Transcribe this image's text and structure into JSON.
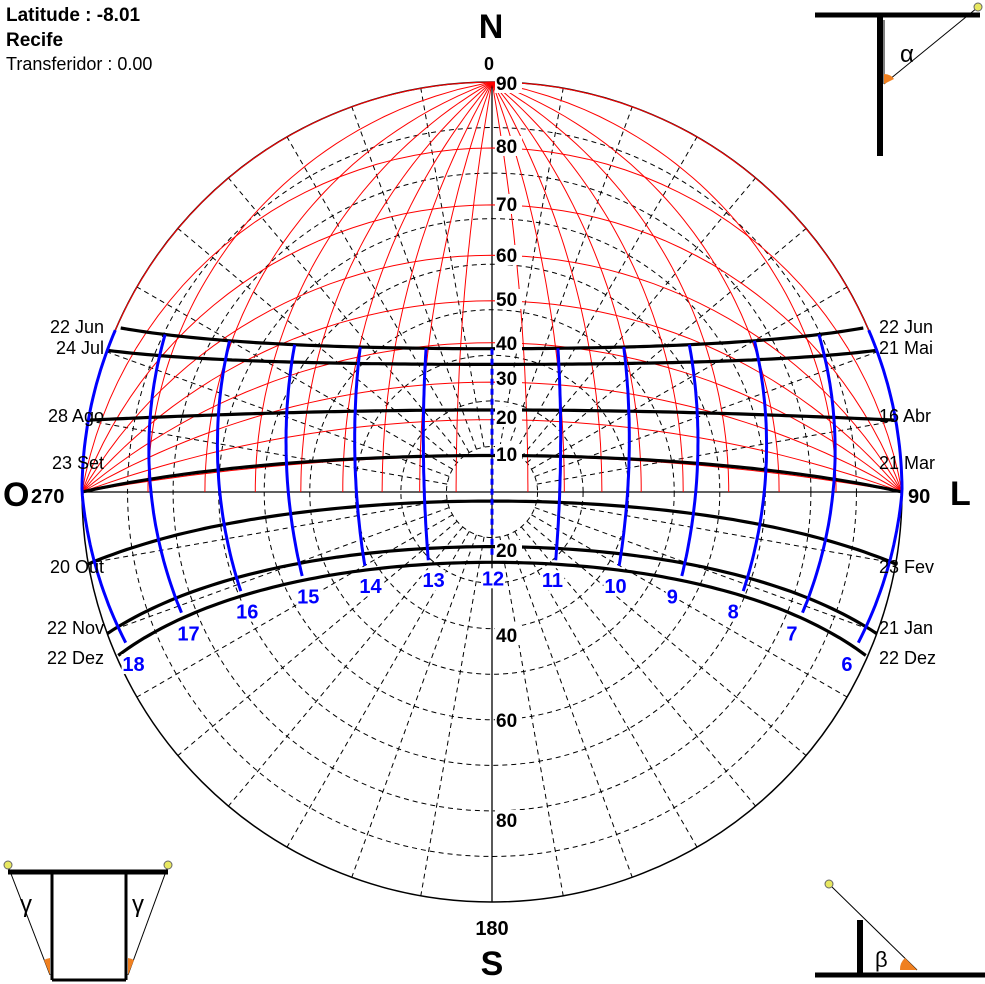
{
  "header": {
    "latitude_label": "Latitude :",
    "latitude_value": "-8.01",
    "city": "Recife",
    "protractor_label": "Transferidor :",
    "protractor_value": "0.00"
  },
  "compass": {
    "north": "N",
    "north_deg": "0",
    "south": "S",
    "south_deg": "180",
    "east": "L",
    "east_deg": "90",
    "west": "O",
    "west_deg": "270"
  },
  "altitude_labels": [
    "90",
    "80",
    "70",
    "60",
    "50",
    "40",
    "30",
    "20",
    "10"
  ],
  "protractor_lower_labels": [
    "20",
    "40",
    "60",
    "80"
  ],
  "date_lines": [
    {
      "left": "22 Jun",
      "right": "22 Jun",
      "dec": 23.44
    },
    {
      "left": "24 Jul",
      "right": "21 Mai",
      "dec": 20.0
    },
    {
      "left": "28 Ago",
      "right": "16 Abr",
      "dec": 10.0
    },
    {
      "left": "23 Set",
      "right": "21 Mar",
      "dec": 0.0
    },
    {
      "left": "20 Out",
      "right": "23 Fev",
      "dec": -10.0
    },
    {
      "left": "22 Nov",
      "right": "21 Jan",
      "dec": -20.0
    },
    {
      "left": "22 Dez",
      "right": "22 Dez",
      "dec": -23.44
    }
  ],
  "hour_labels": [
    "6",
    "7",
    "8",
    "9",
    "10",
    "11",
    "12",
    "13",
    "14",
    "15",
    "16",
    "17",
    "18"
  ],
  "corner_symbols": {
    "alpha": "α",
    "beta": "β",
    "gamma": "γ"
  },
  "colors": {
    "date_line": "#000000",
    "hour_line": "#0000ff",
    "protractor": "#ff0000",
    "grid": "#000000",
    "angle_fill": "#f08020",
    "pivot": "#e8e860"
  }
}
